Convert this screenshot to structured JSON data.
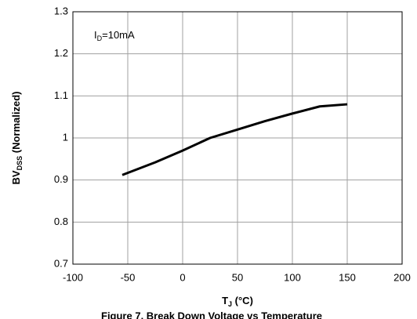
{
  "chart_data": {
    "type": "line",
    "caption": "Figure 7. Break Down Voltage vs Temperature",
    "x_label": {
      "main": "T",
      "sub": "J",
      "rest": " (°C)"
    },
    "y_label": {
      "main": "BV",
      "sub": "DSS",
      "rest": " (Normalized)"
    },
    "annotation": {
      "main": "I",
      "sub": "D",
      "rest": "=10mA"
    },
    "x": [
      -55,
      -25,
      0,
      25,
      50,
      75,
      100,
      125,
      150
    ],
    "series": [
      {
        "name": "BVDSS",
        "color": "#000000",
        "values": [
          0.912,
          0.942,
          0.97,
          1.0,
          1.02,
          1.04,
          1.058,
          1.075,
          1.08
        ]
      }
    ],
    "xlim": [
      -100,
      200
    ],
    "xticks": [
      -100,
      -50,
      0,
      50,
      100,
      150,
      200
    ],
    "ylim": [
      0.7,
      1.3
    ],
    "yticks": [
      0.7,
      0.8,
      0.9,
      1,
      1.1,
      1.2,
      1.3
    ],
    "grid": true
  }
}
